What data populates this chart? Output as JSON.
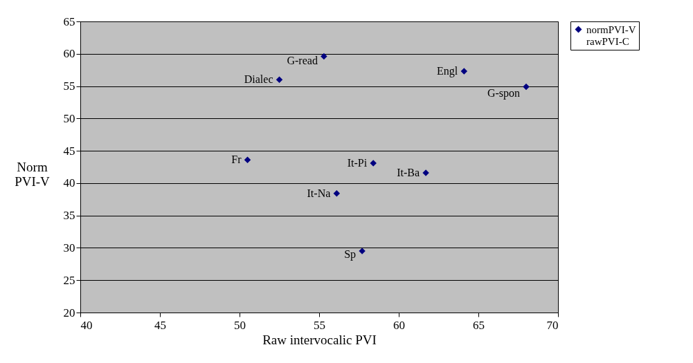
{
  "chart_data": {
    "type": "scatter",
    "xlabel": "Raw intervocalic PVI",
    "ylabel": "Norm PVI-V",
    "x": [
      55.3,
      52.5,
      64.1,
      68.0,
      50.5,
      58.4,
      61.7,
      56.1,
      57.7
    ],
    "series": [
      {
        "name": "normPVI-V rawPVI-C",
        "color": "#000080",
        "values": [
          59.6,
          56.0,
          57.3,
          54.9,
          43.6,
          43.1,
          41.6,
          38.4,
          29.5
        ]
      }
    ],
    "annotations": [
      {
        "text": "G-read",
        "x": 55.3,
        "y": 59.6
      },
      {
        "text": "Dialec",
        "x": 52.5,
        "y": 56.0
      },
      {
        "text": "Engl",
        "x": 64.1,
        "y": 57.3
      },
      {
        "text": "G-spon",
        "x": 68.0,
        "y": 54.9
      },
      {
        "text": "Fr",
        "x": 50.5,
        "y": 43.6
      },
      {
        "text": "It-Pi",
        "x": 58.4,
        "y": 43.1
      },
      {
        "text": "It-Ba",
        "x": 61.7,
        "y": 41.6
      },
      {
        "text": "It-Na",
        "x": 56.1,
        "y": 38.4
      },
      {
        "text": "Sp",
        "x": 57.7,
        "y": 29.5
      }
    ],
    "xlim": [
      40,
      70
    ],
    "xticks": [
      40,
      45,
      50,
      55,
      60,
      65,
      70
    ],
    "ylim": [
      20,
      65
    ],
    "yticks": [
      20,
      25,
      30,
      35,
      40,
      45,
      50,
      55,
      60,
      65
    ],
    "grid": "y",
    "legend": "right",
    "marker": "diamond"
  }
}
